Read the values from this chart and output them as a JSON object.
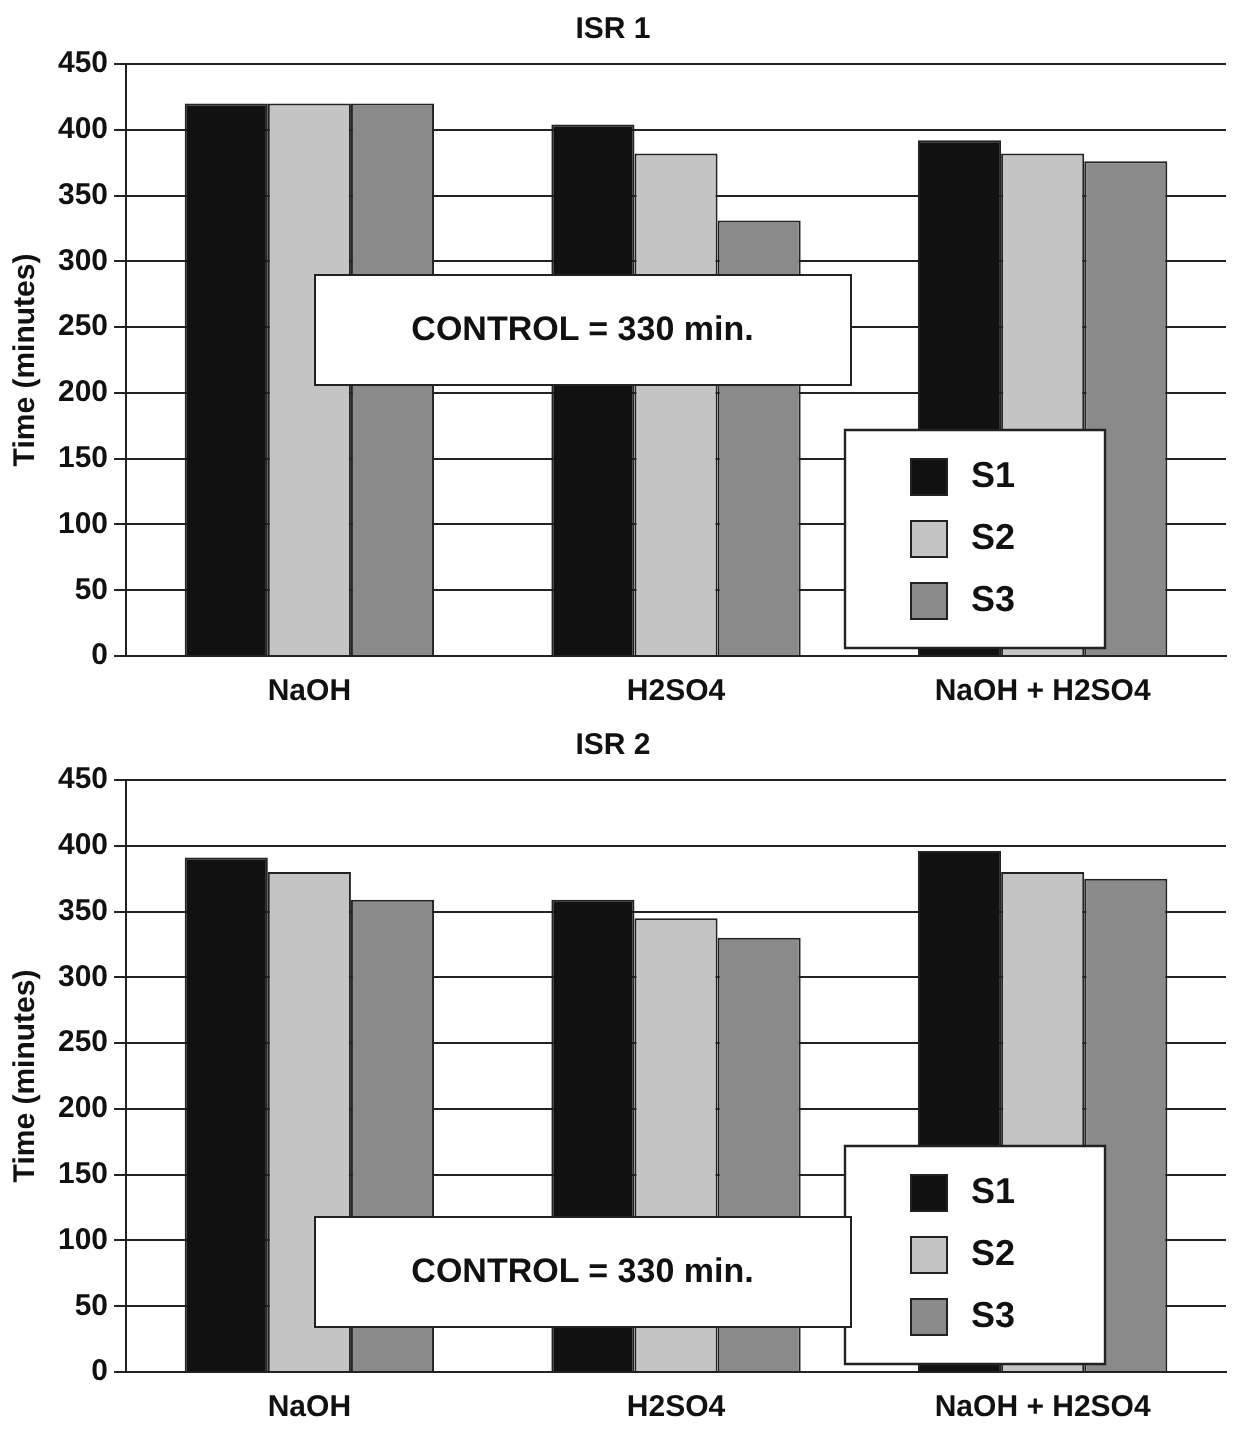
{
  "chart_data": [
    {
      "type": "bar",
      "title": "ISR 1",
      "ylabel": "Time (minutes)",
      "categories": [
        "NaOH",
        "H2SO4",
        "NaOH + H2SO4"
      ],
      "series": [
        {
          "name": "S1",
          "color": "#111111",
          "values": [
            420,
            404,
            392
          ]
        },
        {
          "name": "S2",
          "color": "#c4c4c4",
          "values": [
            420,
            382,
            382
          ]
        },
        {
          "name": "S3",
          "color": "#8a8a8a",
          "values": [
            420,
            331,
            376
          ]
        }
      ],
      "ylim": [
        0,
        450
      ],
      "yticks": [
        0,
        50,
        100,
        150,
        200,
        250,
        300,
        350,
        400,
        450
      ],
      "grid": "y",
      "legend": "bottom right",
      "annotations": [
        "CONTROL = 330 min."
      ]
    },
    {
      "type": "bar",
      "title": "ISR 2",
      "ylabel": "Time (minutes)",
      "categories": [
        "NaOH",
        "H2SO4",
        "NaOH + H2SO4"
      ],
      "series": [
        {
          "name": "S1",
          "color": "#111111",
          "values": [
            391,
            359,
            396
          ]
        },
        {
          "name": "S2",
          "color": "#c4c4c4",
          "values": [
            380,
            345,
            380
          ]
        },
        {
          "name": "S3",
          "color": "#8a8a8a",
          "values": [
            359,
            330,
            375
          ]
        }
      ],
      "ylim": [
        0,
        450
      ],
      "yticks": [
        0,
        50,
        100,
        150,
        200,
        250,
        300,
        350,
        400,
        450
      ],
      "grid": "y",
      "legend": "bottom right",
      "annotations": [
        "CONTROL = 330 min."
      ]
    }
  ]
}
